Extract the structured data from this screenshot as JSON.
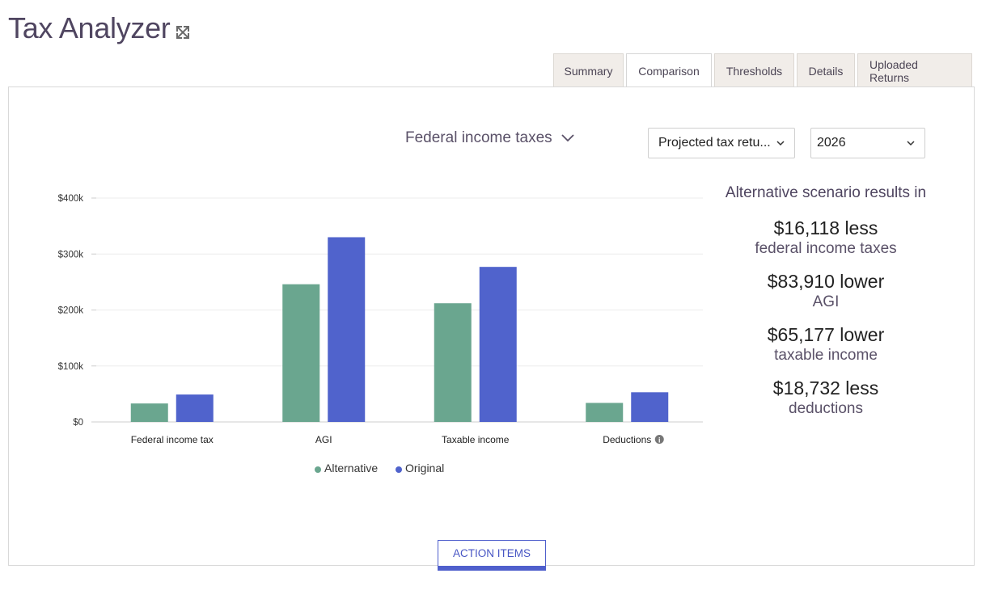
{
  "header": {
    "title": "Tax Analyzer",
    "expand_icon": "expand-arrows-icon"
  },
  "tabs": [
    {
      "label": "Summary",
      "active": false
    },
    {
      "label": "Comparison",
      "active": true
    },
    {
      "label": "Thresholds",
      "active": false
    },
    {
      "label": "Details",
      "active": false
    },
    {
      "label": "Uploaded Returns",
      "active": false
    }
  ],
  "controls": {
    "metric": "Federal income taxes",
    "return_type": "Projected tax retu...",
    "year": "2026"
  },
  "chart_data": {
    "type": "bar",
    "categories": [
      "Federal income tax",
      "AGI",
      "Taxable income",
      "Deductions"
    ],
    "series": [
      {
        "name": "Alternative",
        "color": "#6aa68f",
        "values": [
          33000,
          246000,
          212000,
          34000
        ]
      },
      {
        "name": "Original",
        "color": "#5063cc",
        "values": [
          49000,
          330000,
          277000,
          53000
        ]
      }
    ],
    "y_ticks": [
      "$0",
      "$100k",
      "$200k",
      "$300k",
      "$400k"
    ],
    "ylim": [
      0,
      400000
    ],
    "grid": true,
    "legend": "bottom-center",
    "info_icon_category": "Deductions"
  },
  "results": {
    "heading": "Alternative scenario results in",
    "items": [
      {
        "value": "$16,118 less",
        "label": "federal income taxes"
      },
      {
        "value": "$83,910 lower",
        "label": "AGI"
      },
      {
        "value": "$65,177 lower",
        "label": "taxable income"
      },
      {
        "value": "$18,732 less",
        "label": "deductions"
      }
    ]
  },
  "action_button": "ACTION ITEMS"
}
